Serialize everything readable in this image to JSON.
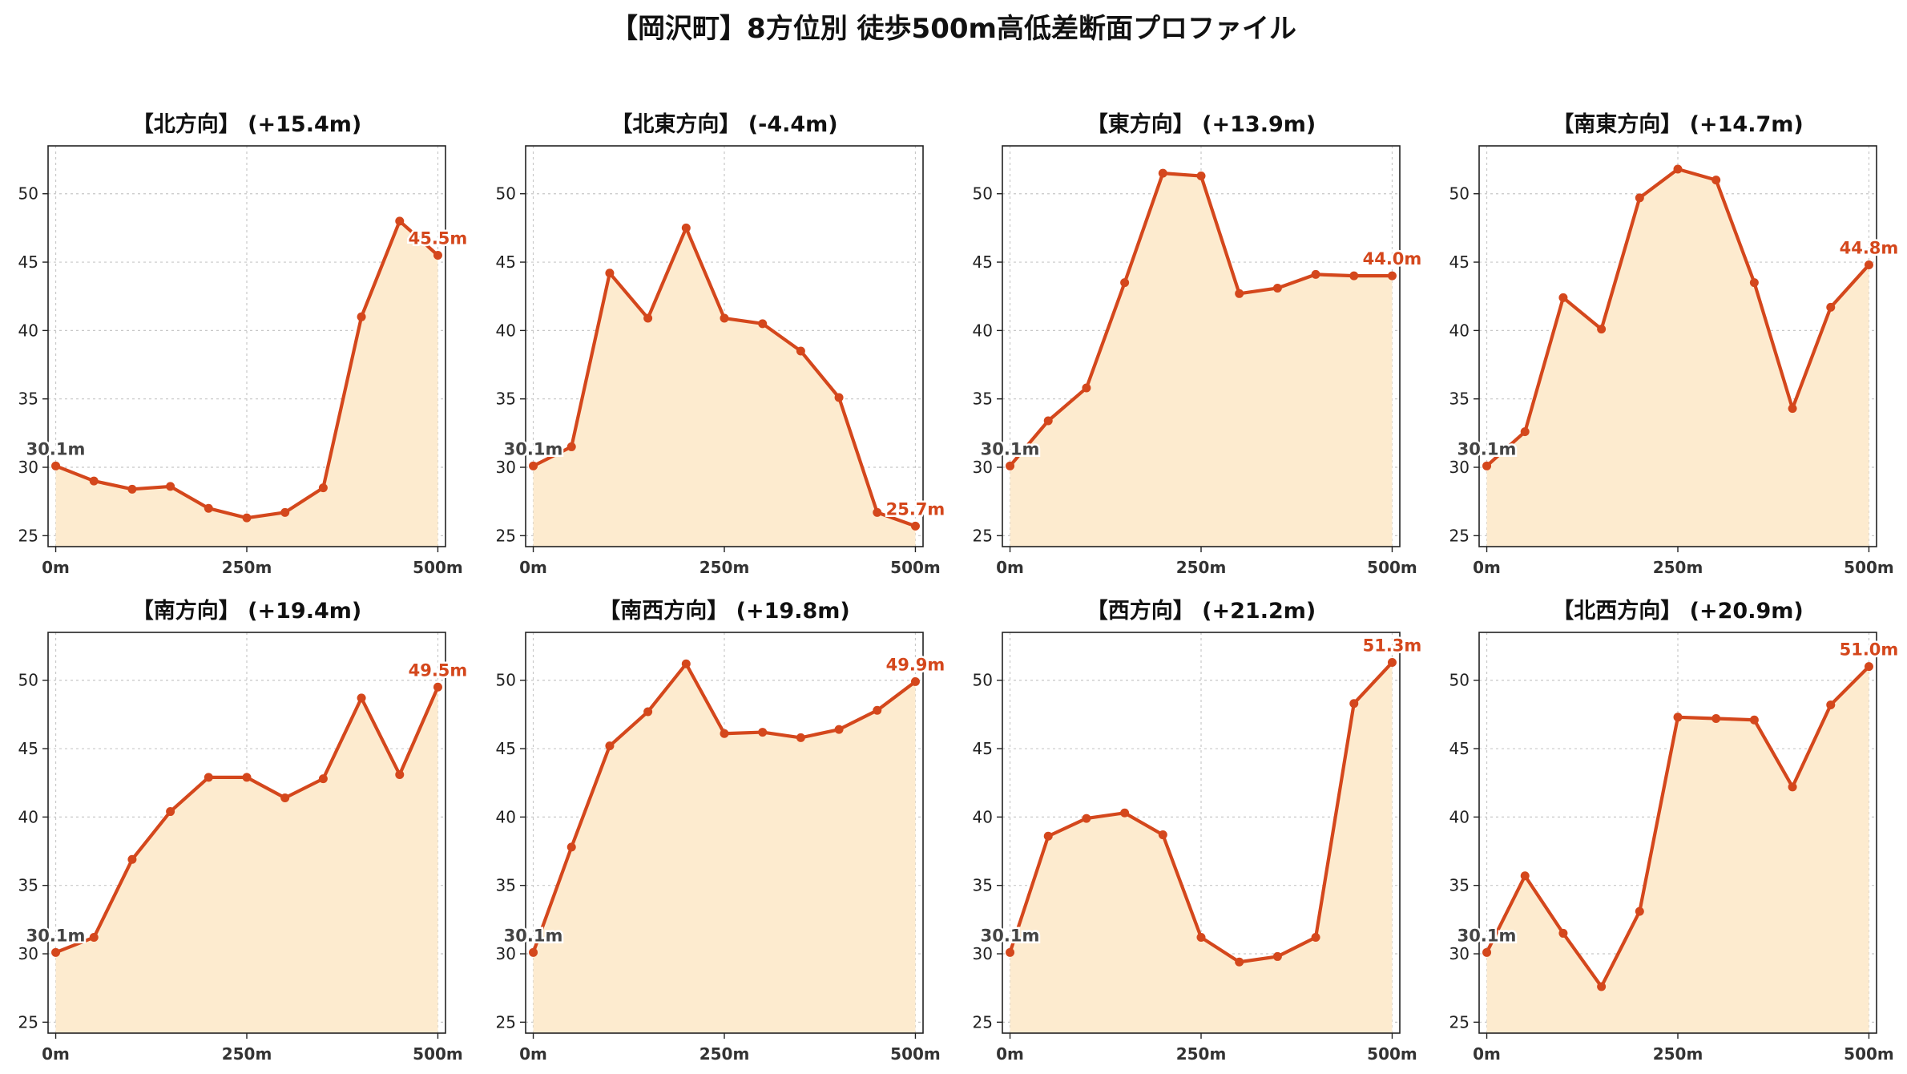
{
  "title": "【岡沢町】8方位別 徒歩500m高低差断面プロファイル",
  "colors": {
    "line": "#d4471c",
    "fill": "#fdebcf",
    "start_label": "#444444",
    "end_label": "#d4471c",
    "grid": "#c8c8c8"
  },
  "chart_data": [
    {
      "type": "area",
      "title": "【北方向】 (+15.4m)",
      "x": [
        0,
        50,
        100,
        150,
        200,
        250,
        300,
        350,
        400,
        450,
        500
      ],
      "values": [
        30.1,
        29.0,
        28.4,
        28.6,
        27.0,
        26.3,
        26.7,
        28.5,
        41.0,
        48.0,
        45.5
      ],
      "xticks": [
        "0m",
        "250m",
        "500m"
      ],
      "yticks": [
        25,
        30,
        35,
        40,
        45,
        50
      ],
      "ylim": [
        24.2,
        53.5
      ],
      "xlim": [
        -10,
        510
      ],
      "start_label": "30.1m",
      "end_label": "45.5m",
      "grid": true
    },
    {
      "type": "area",
      "title": "【北東方向】 (-4.4m)",
      "x": [
        0,
        50,
        100,
        150,
        200,
        250,
        300,
        350,
        400,
        450,
        500
      ],
      "values": [
        30.1,
        31.5,
        44.2,
        40.9,
        47.5,
        40.9,
        40.5,
        38.5,
        35.1,
        26.7,
        25.7
      ],
      "xticks": [
        "0m",
        "250m",
        "500m"
      ],
      "yticks": [
        25,
        30,
        35,
        40,
        45,
        50
      ],
      "ylim": [
        24.2,
        53.5
      ],
      "xlim": [
        -10,
        510
      ],
      "start_label": "30.1m",
      "end_label": "25.7m",
      "grid": true
    },
    {
      "type": "area",
      "title": "【東方向】 (+13.9m)",
      "x": [
        0,
        50,
        100,
        150,
        200,
        250,
        300,
        350,
        400,
        450,
        500
      ],
      "values": [
        30.1,
        33.4,
        35.8,
        43.5,
        51.5,
        51.3,
        42.7,
        43.1,
        44.1,
        44.0,
        44.0
      ],
      "xticks": [
        "0m",
        "250m",
        "500m"
      ],
      "yticks": [
        25,
        30,
        35,
        40,
        45,
        50
      ],
      "ylim": [
        24.2,
        53.5
      ],
      "xlim": [
        -10,
        510
      ],
      "start_label": "30.1m",
      "end_label": "44.0m",
      "grid": true
    },
    {
      "type": "area",
      "title": "【南東方向】 (+14.7m)",
      "x": [
        0,
        50,
        100,
        150,
        200,
        250,
        300,
        350,
        400,
        450,
        500
      ],
      "values": [
        30.1,
        32.6,
        42.4,
        40.1,
        49.7,
        51.8,
        51.0,
        43.5,
        34.3,
        41.7,
        44.8
      ],
      "xticks": [
        "0m",
        "250m",
        "500m"
      ],
      "yticks": [
        25,
        30,
        35,
        40,
        45,
        50
      ],
      "ylim": [
        24.2,
        53.5
      ],
      "xlim": [
        -10,
        510
      ],
      "start_label": "30.1m",
      "end_label": "44.8m",
      "grid": true
    },
    {
      "type": "area",
      "title": "【南方向】 (+19.4m)",
      "x": [
        0,
        50,
        100,
        150,
        200,
        250,
        300,
        350,
        400,
        450,
        500
      ],
      "values": [
        30.1,
        31.2,
        36.9,
        40.4,
        42.9,
        42.9,
        41.4,
        42.8,
        48.7,
        43.1,
        49.5
      ],
      "xticks": [
        "0m",
        "250m",
        "500m"
      ],
      "yticks": [
        25,
        30,
        35,
        40,
        45,
        50
      ],
      "ylim": [
        24.2,
        53.5
      ],
      "xlim": [
        -10,
        510
      ],
      "start_label": "30.1m",
      "end_label": "49.5m",
      "grid": true
    },
    {
      "type": "area",
      "title": "【南西方向】 (+19.8m)",
      "x": [
        0,
        50,
        100,
        150,
        200,
        250,
        300,
        350,
        400,
        450,
        500
      ],
      "values": [
        30.1,
        37.8,
        45.2,
        47.7,
        51.2,
        46.1,
        46.2,
        45.8,
        46.4,
        47.8,
        49.9
      ],
      "xticks": [
        "0m",
        "250m",
        "500m"
      ],
      "yticks": [
        25,
        30,
        35,
        40,
        45,
        50
      ],
      "ylim": [
        24.2,
        53.5
      ],
      "xlim": [
        -10,
        510
      ],
      "start_label": "30.1m",
      "end_label": "49.9m",
      "grid": true
    },
    {
      "type": "area",
      "title": "【西方向】 (+21.2m)",
      "x": [
        0,
        50,
        100,
        150,
        200,
        250,
        300,
        350,
        400,
        450,
        500
      ],
      "values": [
        30.1,
        38.6,
        39.9,
        40.3,
        38.7,
        31.2,
        29.4,
        29.8,
        31.2,
        48.3,
        51.3
      ],
      "xticks": [
        "0m",
        "250m",
        "500m"
      ],
      "yticks": [
        25,
        30,
        35,
        40,
        45,
        50
      ],
      "ylim": [
        24.2,
        53.5
      ],
      "xlim": [
        -10,
        510
      ],
      "start_label": "30.1m",
      "end_label": "51.3m",
      "grid": true
    },
    {
      "type": "area",
      "title": "【北西方向】 (+20.9m)",
      "x": [
        0,
        50,
        100,
        150,
        200,
        250,
        300,
        350,
        400,
        450,
        500
      ],
      "values": [
        30.1,
        35.7,
        31.5,
        27.6,
        33.1,
        47.3,
        47.2,
        47.1,
        42.2,
        48.2,
        51.0
      ],
      "xticks": [
        "0m",
        "250m",
        "500m"
      ],
      "yticks": [
        25,
        30,
        35,
        40,
        45,
        50
      ],
      "ylim": [
        24.2,
        53.5
      ],
      "xlim": [
        -10,
        510
      ],
      "start_label": "30.1m",
      "end_label": "51.0m",
      "grid": true
    }
  ]
}
